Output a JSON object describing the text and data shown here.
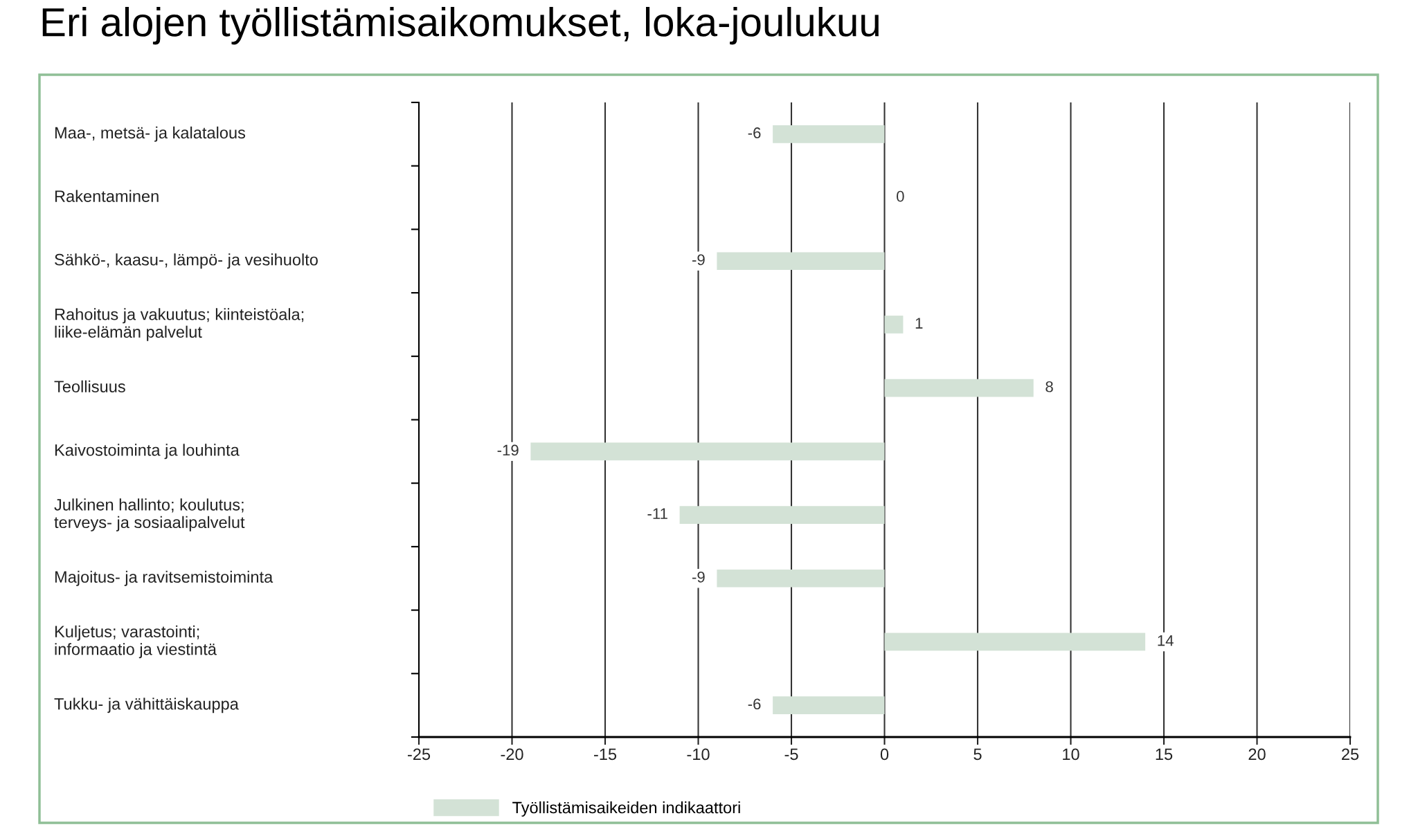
{
  "chart_data": {
    "type": "bar",
    "orientation": "horizontal",
    "title": "Eri alojen työllistämisaikomukset, loka-joulukuu",
    "categories": [
      "Maa-, metsä- ja kalatalous",
      "Rakentaminen",
      "Sähkö-, kaasu-, lämpö- ja vesihuolto",
      "Rahoitus ja vakuutus; kiinteistöala;\nliike-elämän palvelut",
      "Teollisuus",
      "Kaivostoiminta ja louhinta",
      "Julkinen hallinto; koulutus;\nterveys- ja sosiaalipalvelut",
      "Majoitus- ja ravitsemistoiminta",
      "Kuljetus; varastointi;\ninformaatio ja viestintä",
      "Tukku- ja vähittäiskauppa"
    ],
    "series": [
      {
        "name": "Työllistämisaikeiden indikaattori",
        "color": "#d3e2d6",
        "values": [
          -6,
          0,
          -9,
          1,
          8,
          -19,
          -11,
          -9,
          14,
          -6
        ]
      }
    ],
    "xlim": [
      -25,
      25
    ],
    "xticks": [
      -25,
      -20,
      -15,
      -10,
      -5,
      0,
      5,
      10,
      15,
      20,
      25
    ],
    "grid": "x",
    "legend": "bottom",
    "data_labels": true
  }
}
